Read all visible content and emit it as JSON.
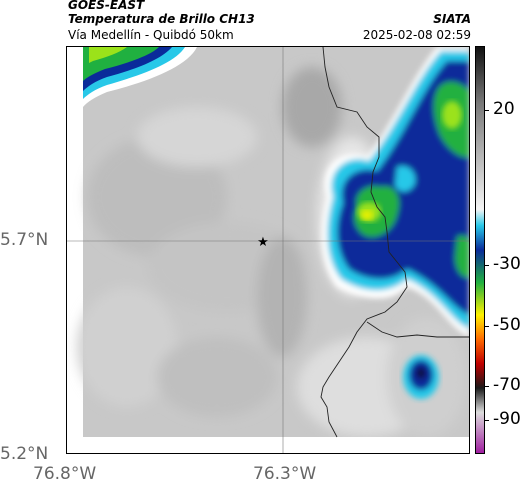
{
  "header": {
    "title_line1": "GOES-EAST",
    "title_line2": "Temperatura de Brillo CH13",
    "subtitle": "Vía Medellín - Quibdó 50km",
    "organization": "SIATA",
    "datetime": "2025-02-08 02:59"
  },
  "map": {
    "lat_labels": [
      "5.7°N",
      "5.2°N"
    ],
    "lon_labels": [
      "76.8°W",
      "76.3°W"
    ],
    "marker_icon": "star-icon"
  },
  "colorbar": {
    "labels": [
      "20",
      "-30",
      "-50",
      "-70",
      "-90"
    ],
    "stops": [
      {
        "pos": 0.0,
        "color": "#111111"
      },
      {
        "pos": 0.14,
        "color": "#7a7a7a"
      },
      {
        "pos": 0.4,
        "color": "#f4f4f4"
      },
      {
        "pos": 0.44,
        "color": "#28c8e8"
      },
      {
        "pos": 0.5,
        "color": "#0a2b9a"
      },
      {
        "pos": 0.58,
        "color": "#20b040"
      },
      {
        "pos": 0.66,
        "color": "#fff200"
      },
      {
        "pos": 0.72,
        "color": "#ff6a00"
      },
      {
        "pos": 0.78,
        "color": "#c00000"
      },
      {
        "pos": 0.84,
        "color": "#1a1a1a"
      },
      {
        "pos": 0.9,
        "color": "#dcdcdc"
      },
      {
        "pos": 1.0,
        "color": "#a01fa0"
      }
    ]
  }
}
